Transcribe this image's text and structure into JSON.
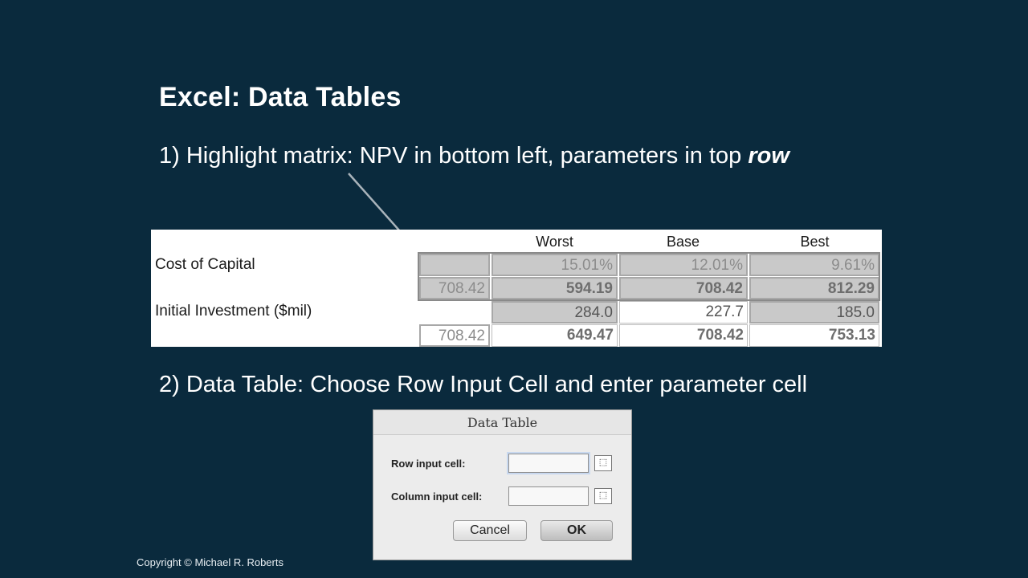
{
  "slide": {
    "title": "Excel: Data Tables",
    "step1_prefix": "1) Highlight matrix: NPV in bottom left, parameters in top ",
    "step1_emphasis": "row",
    "step2": "2) Data Table: Choose Row Input Cell and enter parameter cell",
    "copyright": "Copyright © Michael R. Roberts"
  },
  "sheet": {
    "headers": [
      "Worst",
      "Base",
      "Best"
    ],
    "rows": [
      {
        "label": "Cost of Capital",
        "values": [
          "15.01%",
          "12.01%",
          "9.61%"
        ]
      },
      {
        "label": "",
        "npv": "708.42",
        "values": [
          "594.19",
          "708.42",
          "812.29"
        ]
      },
      {
        "label": "Initial Investment ($mil)",
        "values": [
          "284.0",
          "227.7",
          "185.0"
        ]
      },
      {
        "label": "",
        "npv": "708.42",
        "values": [
          "649.47",
          "708.42",
          "753.13"
        ]
      }
    ]
  },
  "dialog": {
    "title": "Data Table",
    "row_input_label": "Row input cell:",
    "row_input_value": "",
    "column_input_label": "Column input cell:",
    "column_input_value": "",
    "cancel_label": "Cancel",
    "ok_label": "OK",
    "picker_icon": "range-picker-icon"
  },
  "colors": {
    "background": "#0a2a3d",
    "highlight_gray": "#c9c9c9"
  }
}
